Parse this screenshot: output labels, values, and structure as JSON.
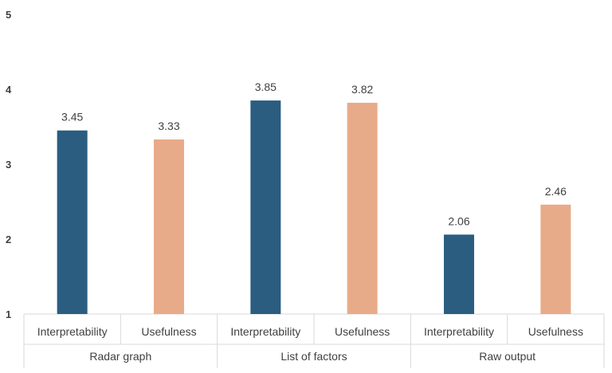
{
  "chart_data": {
    "type": "bar",
    "ylim": [
      1,
      5
    ],
    "yticks": [
      1,
      2,
      3,
      4,
      5
    ],
    "grid": false,
    "groups": [
      {
        "label": "Radar graph",
        "bars": [
          {
            "category": "Interpretability",
            "value": 3.45,
            "value_label": "3.45",
            "color": "#2a5d80"
          },
          {
            "category": "Usefulness",
            "value": 3.33,
            "value_label": "3.33",
            "color": "#e8ab89"
          }
        ]
      },
      {
        "label": "List of factors",
        "bars": [
          {
            "category": "Interpretability",
            "value": 3.85,
            "value_label": "3.85",
            "color": "#2a5d80"
          },
          {
            "category": "Usefulness",
            "value": 3.82,
            "value_label": "3.82",
            "color": "#e8ab89"
          }
        ]
      },
      {
        "label": "Raw output",
        "bars": [
          {
            "category": "Interpretability",
            "value": 2.06,
            "value_label": "2.06",
            "color": "#2a5d80"
          },
          {
            "category": "Usefulness",
            "value": 2.46,
            "value_label": "2.46",
            "color": "#e8ab89"
          }
        ]
      }
    ]
  }
}
